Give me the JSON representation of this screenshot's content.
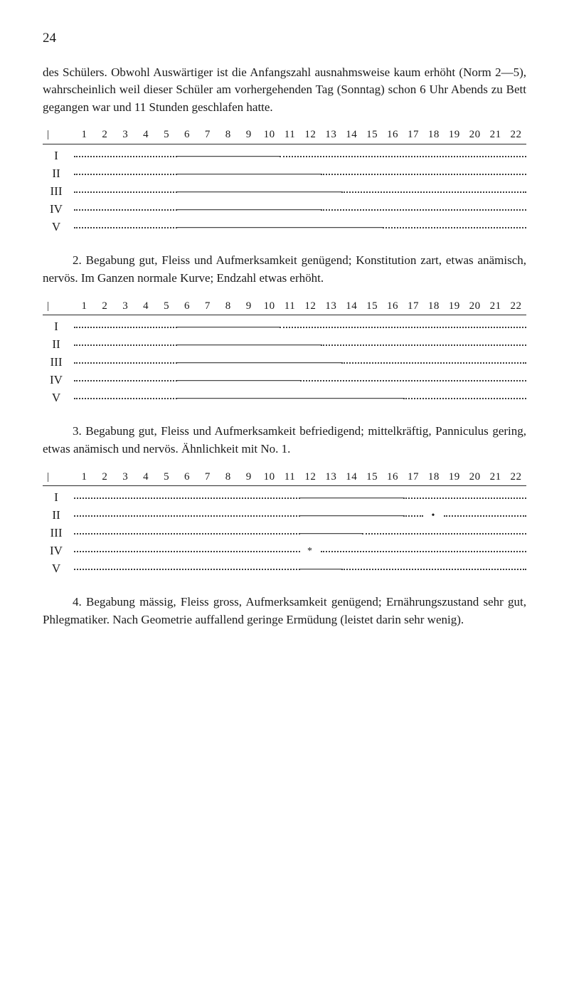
{
  "page_number": "24",
  "para1": "des Schülers. Obwohl Auswärtiger ist die Anfangszahl ausnahmsweise kaum erhöht (Norm 2—5), wahrscheinlich weil dieser Schüler am vorhergehenden Tag (Sonntag) schon 6 Uhr Abends zu Bett gegangen war und 11 Stunden geschlafen hatte.",
  "axis_ticks": [
    "1",
    "2",
    "3",
    "4",
    "5",
    "6",
    "7",
    "8",
    "9",
    "10",
    "11",
    "12",
    "13",
    "14",
    "15",
    "16",
    "17",
    "18",
    "19",
    "20",
    "21",
    "22"
  ],
  "chart1": {
    "rows": [
      {
        "label": "I",
        "segs": [
          {
            "t": "dots",
            "a": 1,
            "b": 5
          },
          {
            "t": "bar",
            "a": 6,
            "b": 10
          },
          {
            "t": "dots",
            "a": 11,
            "b": 22
          }
        ]
      },
      {
        "label": "II",
        "segs": [
          {
            "t": "dots",
            "a": 1,
            "b": 5
          },
          {
            "t": "bar",
            "a": 6,
            "b": 12
          },
          {
            "t": "dots",
            "a": 13,
            "b": 22
          }
        ]
      },
      {
        "label": "III",
        "segs": [
          {
            "t": "dots",
            "a": 1,
            "b": 5
          },
          {
            "t": "bar",
            "a": 6,
            "b": 13
          },
          {
            "t": "dots",
            "a": 14,
            "b": 22
          }
        ]
      },
      {
        "label": "IV",
        "segs": [
          {
            "t": "dots",
            "a": 1,
            "b": 5
          },
          {
            "t": "bar",
            "a": 6,
            "b": 12
          },
          {
            "t": "dots",
            "a": 13,
            "b": 22
          }
        ]
      },
      {
        "label": "V",
        "segs": [
          {
            "t": "dots",
            "a": 1,
            "b": 5
          },
          {
            "t": "bar",
            "a": 6,
            "b": 15
          },
          {
            "t": "dots",
            "a": 16,
            "b": 22
          }
        ]
      }
    ]
  },
  "para2": "2. Begabung gut, Fleiss und Aufmerksamkeit genügend; Konstitution zart, etwas anämisch, nervös. Im Ganzen normale Kurve; Endzahl etwas erhöht.",
  "chart2": {
    "rows": [
      {
        "label": "I",
        "segs": [
          {
            "t": "dots",
            "a": 1,
            "b": 5
          },
          {
            "t": "bar",
            "a": 6,
            "b": 10
          },
          {
            "t": "dots",
            "a": 11,
            "b": 22
          }
        ]
      },
      {
        "label": "II",
        "segs": [
          {
            "t": "dots",
            "a": 1,
            "b": 5
          },
          {
            "t": "bar",
            "a": 6,
            "b": 12
          },
          {
            "t": "dots",
            "a": 13,
            "b": 22
          }
        ]
      },
      {
        "label": "III",
        "segs": [
          {
            "t": "dots",
            "a": 1,
            "b": 5
          },
          {
            "t": "bar",
            "a": 6,
            "b": 13
          },
          {
            "t": "dots",
            "a": 14,
            "b": 22
          }
        ]
      },
      {
        "label": "IV",
        "segs": [
          {
            "t": "dots",
            "a": 1,
            "b": 5
          },
          {
            "t": "bar",
            "a": 6,
            "b": 11
          },
          {
            "t": "dots",
            "a": 12,
            "b": 22
          }
        ]
      },
      {
        "label": "V",
        "segs": [
          {
            "t": "dots",
            "a": 1,
            "b": 5
          },
          {
            "t": "bar",
            "a": 6,
            "b": 16
          },
          {
            "t": "dots",
            "a": 17,
            "b": 22
          }
        ]
      }
    ]
  },
  "para3": "3. Begabung gut, Fleiss und Aufmerksamkeit befriedigend; mittelkräftig, Panniculus gering, etwas anämisch und nervös. Ähnlichkeit mit No. 1.",
  "chart3": {
    "rows": [
      {
        "label": "I",
        "segs": [
          {
            "t": "dots",
            "a": 1,
            "b": 11
          },
          {
            "t": "bar",
            "a": 12,
            "b": 16
          },
          {
            "t": "dots",
            "a": 17,
            "b": 22
          }
        ]
      },
      {
        "label": "II",
        "segs": [
          {
            "t": "dots",
            "a": 1,
            "b": 11
          },
          {
            "t": "bar",
            "a": 12,
            "b": 16
          },
          {
            "t": "dots",
            "a": 17,
            "b": 17
          },
          {
            "t": "mark",
            "a": 18,
            "b": 18,
            "txt": "•"
          },
          {
            "t": "dots",
            "a": 19,
            "b": 22
          }
        ]
      },
      {
        "label": "III",
        "segs": [
          {
            "t": "dots",
            "a": 1,
            "b": 11
          },
          {
            "t": "bar",
            "a": 12,
            "b": 14
          },
          {
            "t": "dots",
            "a": 15,
            "b": 22
          }
        ]
      },
      {
        "label": "IV",
        "segs": [
          {
            "t": "dots",
            "a": 1,
            "b": 11
          },
          {
            "t": "mark",
            "a": 12,
            "b": 12,
            "txt": "*"
          },
          {
            "t": "dots",
            "a": 13,
            "b": 22
          }
        ]
      },
      {
        "label": "V",
        "segs": [
          {
            "t": "dots",
            "a": 1,
            "b": 11
          },
          {
            "t": "bar",
            "a": 12,
            "b": 13
          },
          {
            "t": "dots",
            "a": 14,
            "b": 22
          }
        ]
      }
    ]
  },
  "para4": "4. Begabung mässig, Fleiss gross, Aufmerksamkeit genügend; Ernährungszustand sehr gut, Phlegmatiker. Nach Geometrie auffallend geringe Ermüdung (leistet darin sehr wenig).",
  "style": {
    "text_color": "#1a1a1a",
    "background_color": "#ffffff",
    "dot_color": "#3a3a3a",
    "bar_color": "#1a1a1a",
    "axis_border_color": "#2a2a2a",
    "body_fontsize": 17,
    "axis_fontsize": 15,
    "n_ticks": 22
  }
}
